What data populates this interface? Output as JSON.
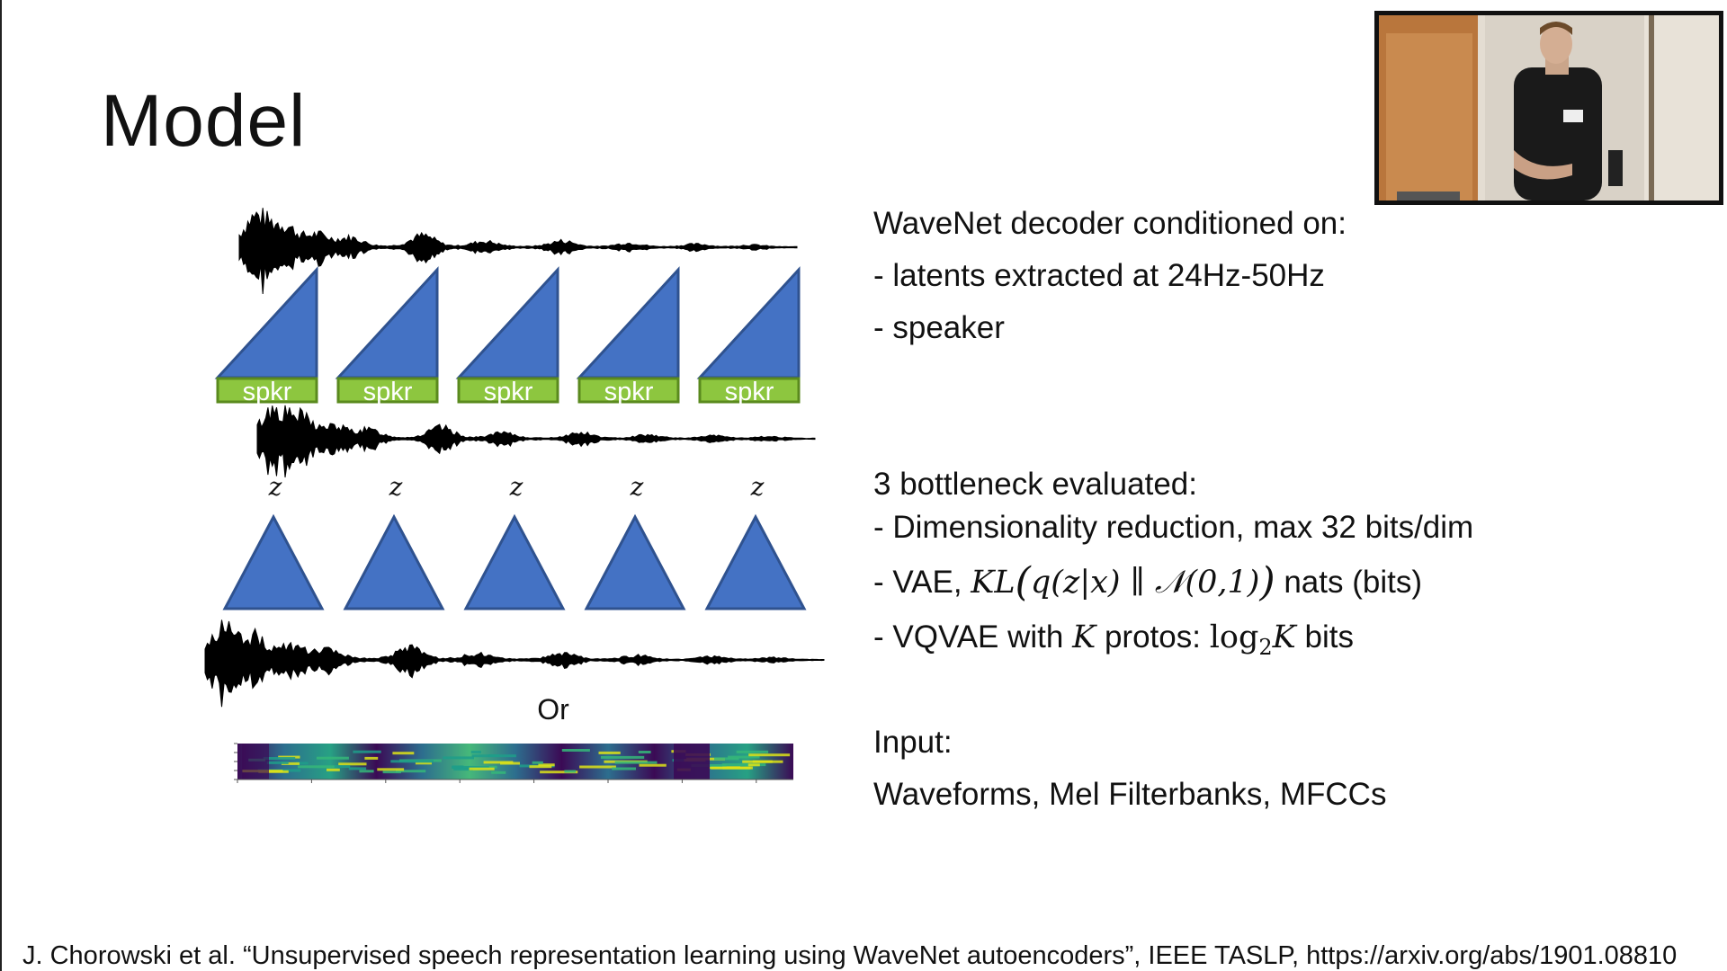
{
  "slide": {
    "title": "Model",
    "or_label": "Or",
    "z_label": "z",
    "spkr_label": "spkr",
    "citation": "J. Chorowski et al. “Unsupervised speech representation learning using WaveNet autoencoders”, IEEE TASLP, https://arxiv.org/abs/1901.08810"
  },
  "decoder": {
    "heading": "WaveNet decoder conditioned on:",
    "item1": "- latents extracted at 24Hz-50Hz",
    "item2": "- speaker"
  },
  "bottleneck": {
    "heading": "3 bottleneck evaluated:",
    "item1": "- Dimensionality reduction, max 32 bits/dim",
    "vae_prefix": "- VAE, ",
    "vae_suffix": " nats (bits)",
    "vq_prefix": "- VQVAE with ",
    "vq_k": "K",
    "vq_middle": " protos: ",
    "vq_log": "log",
    "vq_sub": "2",
    "vq_suffix": " bits"
  },
  "input": {
    "heading": "Input:",
    "list": "Waveforms, Mel Filterbanks, MFCCs"
  },
  "colors": {
    "triangle_fill": "#4472c4",
    "triangle_stroke": "#2f528f",
    "spkr_fill": "#8dc63f",
    "spkr_stroke": "#5a8a1e",
    "spectrogram_dark": "#3b0a55",
    "spectrogram_bright": "#dde318"
  }
}
